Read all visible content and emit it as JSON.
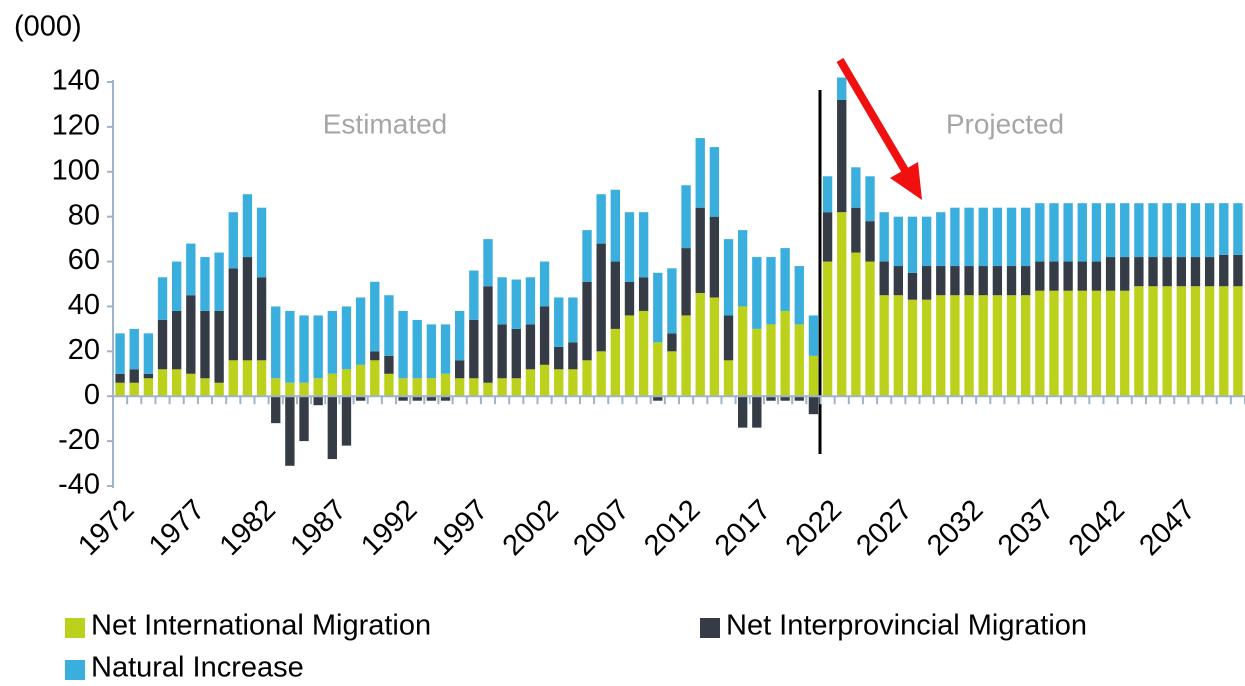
{
  "chart_data": {
    "type": "stacked_bar",
    "unit_label": "(000)",
    "annotations": [
      "Estimated",
      "Projected"
    ],
    "categories": [
      "1972",
      null,
      null,
      null,
      null,
      "1977",
      null,
      null,
      null,
      null,
      "1982",
      null,
      null,
      null,
      null,
      "1987",
      null,
      null,
      null,
      null,
      "1992",
      null,
      null,
      null,
      null,
      "1997",
      null,
      null,
      null,
      null,
      "2002",
      null,
      null,
      null,
      null,
      "2007",
      null,
      null,
      null,
      null,
      "2012",
      null,
      null,
      null,
      null,
      "2017",
      null,
      null,
      null,
      null,
      "2022",
      null,
      null,
      null,
      null,
      "2027",
      null,
      null,
      null,
      null,
      "2032",
      null,
      null,
      null,
      null,
      "2037",
      null,
      null,
      null,
      null,
      "2042",
      null,
      null,
      null,
      null,
      "2047",
      null,
      null,
      null,
      null
    ],
    "series": [
      {
        "name": "Net International Migration",
        "color": "#bcd11c",
        "values": [
          6,
          6,
          8,
          12,
          12,
          10,
          8,
          6,
          16,
          16,
          16,
          8,
          6,
          6,
          8,
          10,
          12,
          14,
          16,
          10,
          8,
          8,
          8,
          10,
          8,
          8,
          6,
          8,
          8,
          12,
          14,
          12,
          12,
          16,
          20,
          30,
          36,
          38,
          24,
          20,
          36,
          46,
          44,
          16,
          40,
          30,
          32,
          38,
          32,
          18,
          60,
          82,
          64,
          60,
          45,
          45,
          43,
          43,
          45,
          45,
          45,
          45,
          45,
          45,
          45,
          47,
          47,
          47,
          47,
          47,
          47,
          47,
          49,
          49,
          49,
          49,
          49,
          49,
          49,
          49
        ]
      },
      {
        "name": "Net Interprovincial Migration",
        "color": "#353c45",
        "values": [
          4,
          6,
          2,
          22,
          26,
          35,
          30,
          32,
          41,
          46,
          37,
          -12,
          -31,
          -20,
          -4,
          -28,
          -22,
          -2,
          4,
          8,
          -2,
          -2,
          -2,
          -2,
          8,
          26,
          43,
          24,
          22,
          20,
          26,
          10,
          12,
          35,
          48,
          30,
          15,
          15,
          -2,
          8,
          30,
          38,
          36,
          20,
          -14,
          -14,
          -2,
          -2,
          -2,
          -8,
          22,
          50,
          20,
          18,
          15,
          13,
          12,
          15,
          13,
          13,
          13,
          13,
          13,
          13,
          13,
          13,
          13,
          13,
          13,
          13,
          15,
          15,
          13,
          13,
          13,
          13,
          13,
          13,
          14,
          14
        ]
      },
      {
        "name": "Natural Increase",
        "color": "#3aaedc",
        "values": [
          18,
          18,
          18,
          19,
          22,
          23,
          24,
          26,
          25,
          28,
          31,
          32,
          32,
          30,
          28,
          28,
          28,
          30,
          31,
          27,
          30,
          26,
          24,
          22,
          22,
          22,
          21,
          21,
          22,
          21,
          20,
          22,
          20,
          23,
          22,
          32,
          31,
          29,
          31,
          29,
          28,
          31,
          31,
          34,
          34,
          32,
          30,
          28,
          26,
          18,
          16,
          10,
          18,
          20,
          22,
          22,
          25,
          22,
          24,
          26,
          26,
          26,
          26,
          26,
          26,
          26,
          26,
          26,
          26,
          26,
          24,
          24,
          24,
          24,
          24,
          24,
          24,
          24,
          23,
          23
        ]
      }
    ],
    "ylim": [
      -40,
      140
    ],
    "yticks": [
      -40,
      -20,
      0,
      20,
      40,
      60,
      80,
      100,
      120,
      140
    ]
  }
}
